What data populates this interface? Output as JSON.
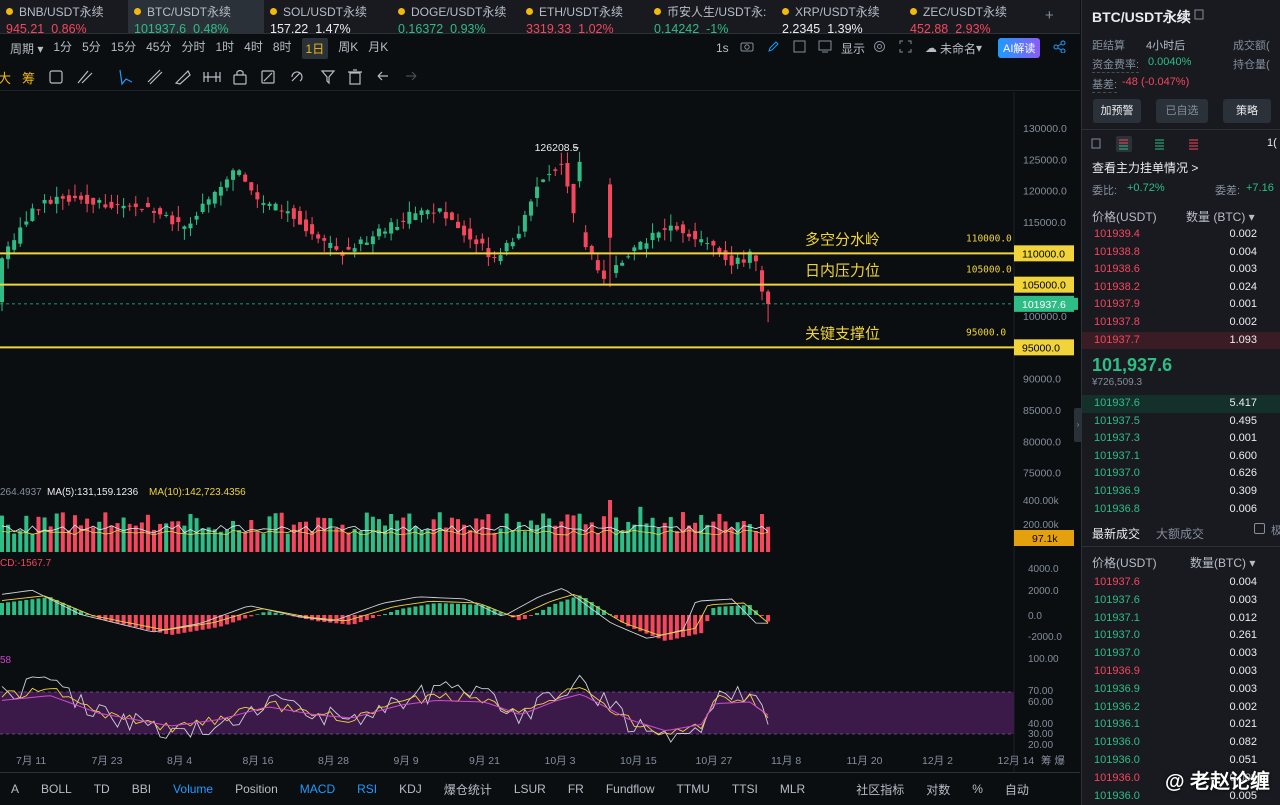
{
  "tabs": [
    {
      "name": "BNB/USDT永续",
      "price": "945.21",
      "chg": "0.86%",
      "dir": "dn"
    },
    {
      "name": "BTC/USDT永续",
      "price": "101937.6",
      "chg": "0.48%",
      "dir": "up",
      "active": true
    },
    {
      "name": "SOL/USDT永续",
      "price": "157.22",
      "chg": "1.47%",
      "dir": "wh"
    },
    {
      "name": "DOGE/USDT永续",
      "price": "0.16372",
      "chg": "0.93%",
      "dir": "up"
    },
    {
      "name": "ETH/USDT永续",
      "price": "3319.33",
      "chg": "1.02%",
      "dir": "dn"
    },
    {
      "name": "币安人生/USDT永:",
      "price": "0.14242",
      "chg": "-1%",
      "dir": "up"
    },
    {
      "name": "XRP/USDT永续",
      "price": "2.2345",
      "chg": "1.39%",
      "dir": "wh"
    },
    {
      "name": "ZEC/USDT永续",
      "price": "452.88",
      "chg": "2.93%",
      "dir": "dn"
    }
  ],
  "add_tab": "+",
  "toolbar": {
    "period_label": "周期",
    "intervals": [
      "1分",
      "5分",
      "15分",
      "45分",
      "分时",
      "1时",
      "4时",
      "8时",
      "1日",
      "周K",
      "月K"
    ],
    "selected": "1日",
    "right_1s": "1s",
    "display": "显示",
    "unnamed": "未命名",
    "ai": "AI解读"
  },
  "draw_tools": {
    "t1": "大",
    "t2": "筹"
  },
  "chart": {
    "y_axis": [
      "130000.0",
      "125000.0",
      "120000.0",
      "115000.0",
      "110000.0",
      "105000.0",
      "100000.0",
      "95000.0",
      "90000.0",
      "85000.0",
      "80000.0",
      "75000.0"
    ],
    "x_axis": [
      "7月 11",
      "7月 23",
      "8月 4",
      "8月 16",
      "8月 28",
      "9月 9",
      "9月 21",
      "10月 3",
      "10月 15",
      "10月 27",
      "11月 8",
      "11月 20",
      "12月 2",
      "12月 14"
    ],
    "high_label": "126208.5",
    "current_price": "101937.6",
    "levels": [
      {
        "value": 110000,
        "label": "多空分水岭",
        "tag": "110000.0",
        "box": "110000.0"
      },
      {
        "value": 105000,
        "label": "日内压力位",
        "tag": "105000.0",
        "box": "105000.0"
      },
      {
        "value": 95000,
        "label": "关键支撑位",
        "tag": "95000.0",
        "box": "95000.0"
      }
    ],
    "vol_text1": "264.4937",
    "vol_ma5": "MA(5):131,159.1236",
    "vol_ma10": "MA(10):142,723.4356",
    "vol_axis": [
      "400.00k",
      "200.00k"
    ],
    "vol_box": "97.1k",
    "macd_text": "CD:-1567.7",
    "macd_axis": [
      "4000.0",
      "2000.0",
      "0.0",
      "-2000.0"
    ],
    "rsi_text": "58",
    "rsi_axis": [
      "100.00",
      "70.00",
      "60.00",
      "40.00",
      "30.00",
      "20.00"
    ]
  },
  "bottom_bar": [
    "A",
    "BOLL",
    "TD",
    "BBI",
    "Volume",
    "Position",
    "MACD",
    "RSI",
    "KDJ",
    "爆仓统计",
    "LSUR",
    "FR",
    "Fundflow",
    "TTMU",
    "TTSI",
    "MLR",
    "社区指标",
    "对数",
    "%",
    "自动"
  ],
  "bottom_active": [
    "Volume",
    "MACD",
    "RSI"
  ],
  "side_label_right": "筹 爆",
  "right_panel": {
    "symbol": "BTC/USDT永续",
    "settle_label": "距结算",
    "settle_val": "4小时后",
    "funding_label": "资金费率:",
    "funding_val": "0.0040%",
    "basis_label": "基差:",
    "basis_val": "-48 (-0.047%)",
    "vol_label": "成交额(",
    "oi_label": "持仓量(",
    "btn_alert": "加预警",
    "btn_fav": "已自选",
    "btn_strategy": "策略",
    "depth_unit": "1(",
    "whale_title": "查看主力挂单情况 >",
    "ratio_left_label": "委比:",
    "ratio_left": "+0.72%",
    "ratio_right_label": "委差:",
    "ratio_right": "+7.16",
    "col_price": "价格(USDT)",
    "col_qty": "数量 (BTC)",
    "asks": [
      [
        "101939.4",
        "0.002"
      ],
      [
        "101938.8",
        "0.004"
      ],
      [
        "101938.6",
        "0.003"
      ],
      [
        "101938.2",
        "0.024"
      ],
      [
        "101937.9",
        "0.001"
      ],
      [
        "101937.8",
        "0.002"
      ],
      [
        "101937.7",
        "1.093"
      ]
    ],
    "mid_price": "101,937.6",
    "mid_cny": "¥726,509.3",
    "bids": [
      [
        "101937.6",
        "5.417"
      ],
      [
        "101937.5",
        "0.495"
      ],
      [
        "101937.3",
        "0.001"
      ],
      [
        "101937.1",
        "0.600"
      ],
      [
        "101937.0",
        "0.626"
      ],
      [
        "101936.9",
        "0.309"
      ],
      [
        "101936.8",
        "0.006"
      ]
    ],
    "trades_tab1": "最新成交",
    "trades_tab2": "大额成交",
    "trades_cut": "极",
    "col_price2": "价格(USDT)",
    "col_qty2": "数量(BTC)",
    "trades": [
      [
        "101937.6",
        "0.004",
        "dn"
      ],
      [
        "101937.6",
        "0.003",
        "up"
      ],
      [
        "101937.1",
        "0.012",
        "up"
      ],
      [
        "101937.0",
        "0.261",
        "up"
      ],
      [
        "101937.0",
        "0.003",
        "up"
      ],
      [
        "101936.9",
        "0.003",
        "dn"
      ],
      [
        "101936.9",
        "0.003",
        "up"
      ],
      [
        "101936.2",
        "0.002",
        "up"
      ],
      [
        "101936.1",
        "0.021",
        "up"
      ],
      [
        "101936.0",
        "0.082",
        "up"
      ],
      [
        "101936.0",
        "0.051",
        "up"
      ],
      [
        "101936.0",
        "0.008",
        "dn"
      ],
      [
        "101936.0",
        "0.005",
        "up"
      ]
    ]
  },
  "watermark": "@ 老赵论缠",
  "colors": {
    "up": "#2ebd85",
    "down": "#f6465d",
    "level": "#f0d43a",
    "accent": "#f0b90b"
  }
}
